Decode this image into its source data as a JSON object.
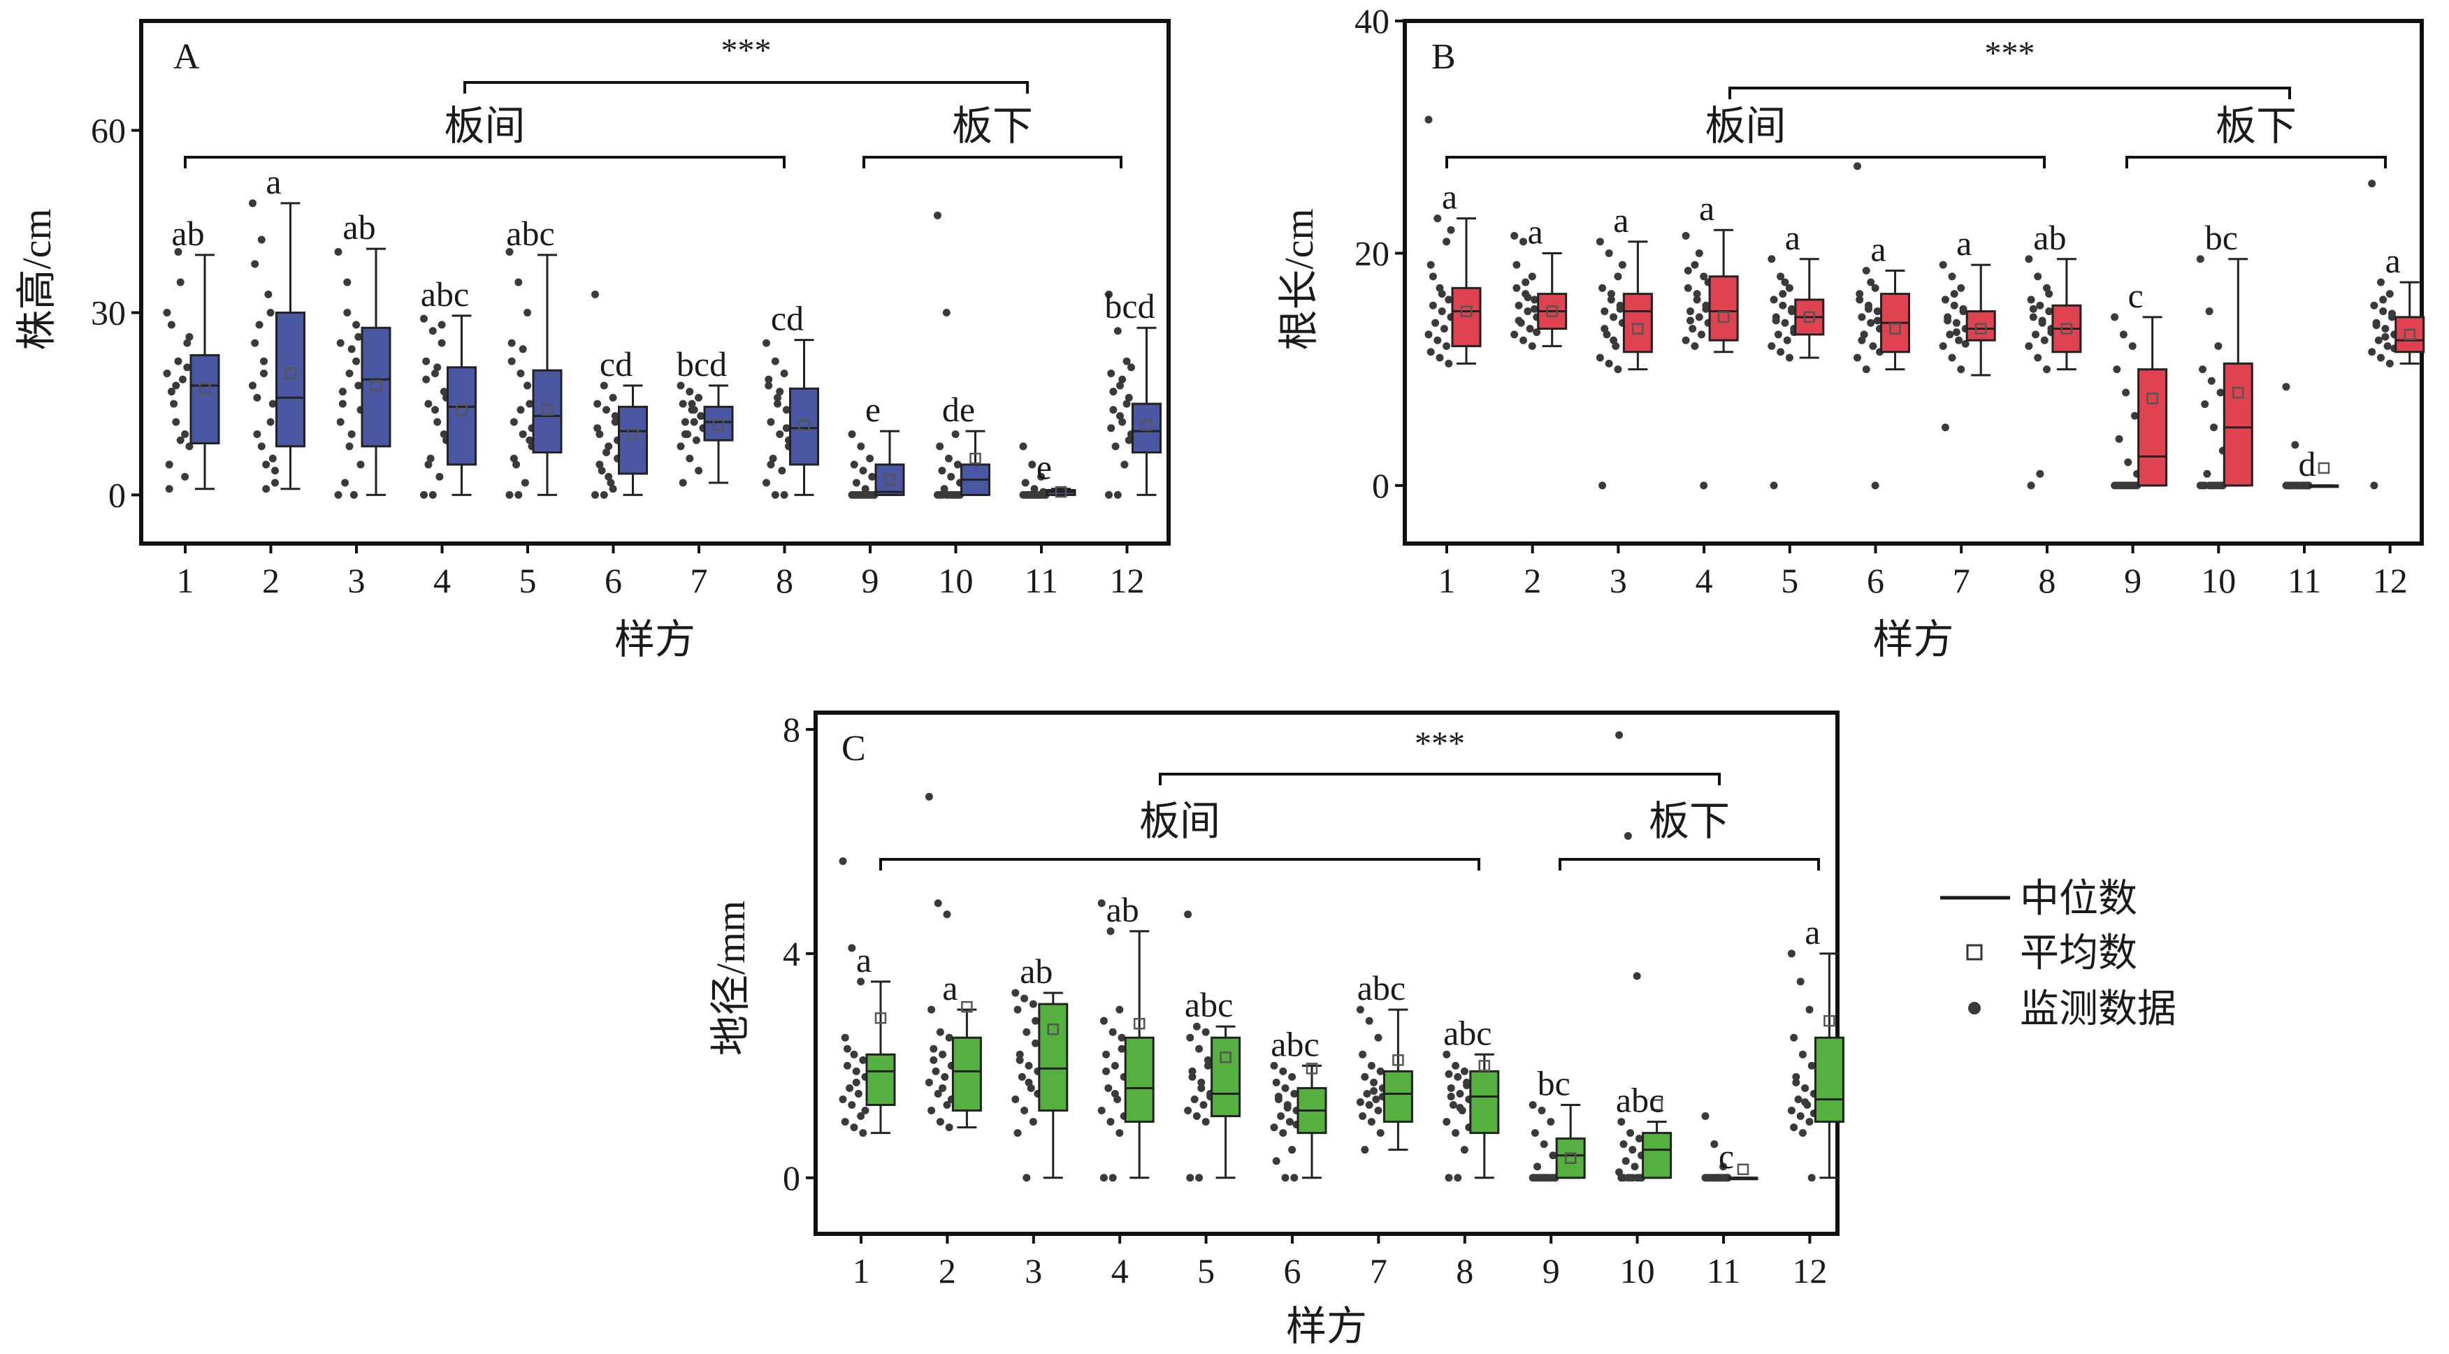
{
  "chart_data": [
    {
      "type": "box",
      "panel": "A",
      "ylabel": "株高/cm",
      "xlabel": "样方",
      "ylim": [
        -8,
        78
      ],
      "yticks": [
        0,
        30,
        60
      ],
      "categories": [
        "1",
        "2",
        "3",
        "4",
        "5",
        "6",
        "7",
        "8",
        "9",
        "10",
        "11",
        "12"
      ],
      "group_labels": [
        "板间",
        "板下"
      ],
      "significance": "***",
      "color": "#4a58a4",
      "boxes": [
        {
          "min": 1,
          "q1": 8.5,
          "median": 18,
          "q3": 23,
          "max": 39.5,
          "mean": 17.5,
          "letter": "ab"
        },
        {
          "min": 1,
          "q1": 8,
          "median": 16,
          "q3": 30,
          "max": 48,
          "mean": 20,
          "letter": "a"
        },
        {
          "min": 0,
          "q1": 8,
          "median": 19,
          "q3": 27.5,
          "max": 40.5,
          "mean": 18,
          "letter": "ab"
        },
        {
          "min": 0,
          "q1": 5,
          "median": 14.5,
          "q3": 21,
          "max": 29.5,
          "mean": 14,
          "letter": "abc"
        },
        {
          "min": 0,
          "q1": 7,
          "median": 13,
          "q3": 20.5,
          "max": 39.5,
          "mean": 14,
          "letter": "abc"
        },
        {
          "min": 0,
          "q1": 3.5,
          "median": 10.5,
          "q3": 14.5,
          "max": 18,
          "mean": 10,
          "letter": "cd"
        },
        {
          "min": 2,
          "q1": 9,
          "median": 12,
          "q3": 14.5,
          "max": 18,
          "mean": 11.5,
          "letter": "bcd"
        },
        {
          "min": 0,
          "q1": 5,
          "median": 11,
          "q3": 17.5,
          "max": 25.5,
          "mean": 11.5,
          "letter": "cd"
        },
        {
          "min": 0,
          "q1": 0,
          "median": 0.5,
          "q3": 5,
          "max": 10.5,
          "mean": 2.5,
          "letter": "e"
        },
        {
          "min": 0,
          "q1": 0,
          "median": 2.5,
          "q3": 5,
          "max": 10.5,
          "mean": 6,
          "letter": "de"
        },
        {
          "min": 0,
          "q1": 0,
          "median": 0.5,
          "q3": 0.8,
          "max": 1,
          "mean": 0.5,
          "letter": "e"
        },
        {
          "min": 0,
          "q1": 7,
          "median": 10.5,
          "q3": 15,
          "max": 27.5,
          "mean": 11.5,
          "letter": "bcd"
        }
      ],
      "points": [
        [
          20,
          18,
          10,
          5,
          22,
          25,
          28,
          35,
          8,
          15,
          19,
          30,
          12,
          3,
          1,
          40,
          21,
          17,
          9,
          26
        ],
        [
          48,
          42,
          30,
          25,
          20,
          15,
          10,
          5,
          2,
          28,
          33,
          18,
          8,
          12,
          38,
          22,
          6,
          16,
          1,
          4
        ],
        [
          40,
          35,
          28,
          25,
          20,
          18,
          15,
          10,
          5,
          2,
          0,
          0,
          30,
          22,
          12,
          8,
          26,
          17,
          24,
          14
        ],
        [
          29,
          27,
          25,
          22,
          20,
          17,
          15,
          12,
          9,
          6,
          3,
          0,
          0,
          28,
          19,
          14,
          10,
          5,
          21,
          16
        ],
        [
          40,
          35,
          30,
          25,
          20,
          15,
          12,
          10,
          8,
          5,
          2,
          0,
          0,
          18,
          22,
          14,
          9,
          6,
          24,
          11
        ],
        [
          33,
          18,
          16,
          15,
          14,
          12,
          10,
          8,
          6,
          4,
          2,
          0,
          0,
          1,
          11,
          7,
          13,
          5,
          3,
          9
        ],
        [
          18,
          17,
          16,
          15,
          14,
          13,
          12,
          12,
          11,
          10,
          9,
          8,
          6,
          4,
          2,
          15,
          13,
          10,
          14,
          11
        ],
        [
          25,
          22,
          20,
          18,
          16,
          14,
          12,
          10,
          8,
          6,
          4,
          2,
          0,
          0,
          19,
          15,
          11,
          5,
          17,
          9
        ],
        [
          10,
          8,
          6,
          5,
          4,
          3,
          2,
          1,
          0,
          0,
          0,
          0,
          0,
          0,
          0,
          0,
          0,
          0,
          0,
          0
        ],
        [
          46,
          30,
          10,
          8,
          6,
          5,
          4,
          3,
          2,
          1,
          0,
          0,
          0,
          0,
          0,
          0,
          0,
          0,
          0,
          0
        ],
        [
          8,
          5,
          3,
          2,
          1,
          0.5,
          0,
          0,
          0,
          0,
          0,
          0,
          0,
          0,
          0,
          0,
          0,
          0,
          0,
          0
        ],
        [
          33,
          27,
          22,
          20,
          18,
          16,
          14,
          12,
          10,
          8,
          5,
          0,
          0,
          15,
          11,
          13,
          9,
          17,
          19,
          21
        ]
      ]
    },
    {
      "type": "box",
      "panel": "B",
      "ylabel": "根长/cm",
      "xlabel": "样方",
      "ylim": [
        -5,
        40
      ],
      "yticks": [
        0,
        20,
        40
      ],
      "categories": [
        "1",
        "2",
        "3",
        "4",
        "5",
        "6",
        "7",
        "8",
        "9",
        "10",
        "11",
        "12"
      ],
      "group_labels": [
        "板间",
        "板下"
      ],
      "significance": "***",
      "color": "#e0424f",
      "boxes": [
        {
          "min": 10.5,
          "q1": 12,
          "median": 15,
          "q3": 17,
          "max": 23,
          "mean": 15,
          "letter": "a"
        },
        {
          "min": 12,
          "q1": 13.5,
          "median": 15,
          "q3": 16.5,
          "max": 20,
          "mean": 15,
          "letter": "a"
        },
        {
          "min": 10,
          "q1": 11.5,
          "median": 15,
          "q3": 16.5,
          "max": 21,
          "mean": 13.5,
          "letter": "a"
        },
        {
          "min": 11.5,
          "q1": 12.5,
          "median": 15,
          "q3": 18,
          "max": 22,
          "mean": 14.5,
          "letter": "a"
        },
        {
          "min": 11,
          "q1": 13,
          "median": 14.5,
          "q3": 16,
          "max": 19.5,
          "mean": 14.5,
          "letter": "a"
        },
        {
          "min": 10,
          "q1": 11.5,
          "median": 14,
          "q3": 16.5,
          "max": 18.5,
          "mean": 13.5,
          "letter": "a"
        },
        {
          "min": 9.5,
          "q1": 12.5,
          "median": 13.5,
          "q3": 15,
          "max": 19,
          "mean": 13.5,
          "letter": "a"
        },
        {
          "min": 10,
          "q1": 11.5,
          "median": 13.5,
          "q3": 15.5,
          "max": 19.5,
          "mean": 13.5,
          "letter": "ab"
        },
        {
          "min": 0,
          "q1": 0,
          "median": 2.5,
          "q3": 10,
          "max": 14.5,
          "mean": 7.5,
          "letter": "c"
        },
        {
          "min": 0,
          "q1": 0,
          "median": 5,
          "q3": 10.5,
          "max": 19.5,
          "mean": 8,
          "letter": "bc"
        },
        {
          "min": 0,
          "q1": 0,
          "median": 0,
          "q3": 0,
          "max": 0,
          "mean": 1.5,
          "letter": "d"
        },
        {
          "min": 10.5,
          "q1": 11.5,
          "median": 12.5,
          "q3": 14.5,
          "max": 17.5,
          "mean": 13,
          "letter": "a"
        }
      ],
      "points": [
        [
          31.5,
          23,
          21,
          19,
          17,
          16,
          15.5,
          15,
          14.5,
          14,
          13.5,
          13,
          12.5,
          12,
          11.5,
          11,
          10.5,
          18,
          16.5,
          22
        ],
        [
          21.5,
          21,
          18,
          17,
          16.5,
          16,
          15.5,
          15,
          14.5,
          14,
          13.5,
          13,
          12.5,
          12,
          19,
          17.5,
          15.2,
          14.2,
          16.2,
          13.2
        ],
        [
          21,
          20,
          18,
          17,
          16,
          15.5,
          15,
          14.5,
          14,
          13,
          12,
          11,
          10.5,
          10,
          0,
          16.5,
          15.2,
          13.5,
          12.5,
          19
        ],
        [
          21.5,
          19,
          18,
          17,
          16,
          15.5,
          15,
          14.5,
          14,
          13.5,
          13,
          12.5,
          12,
          0,
          18.5,
          16.5,
          15.2,
          14.2,
          20,
          17.5
        ],
        [
          19.5,
          18,
          17,
          16,
          15.5,
          15,
          14.5,
          14,
          13.5,
          13,
          12.5,
          12,
          11.5,
          11,
          0,
          16.5,
          15.2,
          14.2,
          17.5,
          13.2
        ],
        [
          27.5,
          18.5,
          17,
          16,
          15.5,
          15,
          14.5,
          14,
          13.5,
          13,
          12,
          11,
          10,
          0,
          16.5,
          15.2,
          14.2,
          12.5,
          17.5,
          11.5
        ],
        [
          19,
          18,
          17,
          16,
          15.5,
          15,
          14.5,
          14,
          13.5,
          13,
          12.5,
          12,
          11,
          10,
          5,
          16.5,
          15.2,
          14.2,
          13.2,
          12.2
        ],
        [
          19.5,
          18,
          17,
          16,
          15.5,
          15,
          14.5,
          14,
          13.5,
          13,
          12.5,
          12,
          11,
          10,
          0,
          1,
          16.5,
          15.2,
          14.2,
          13.2
        ],
        [
          14.5,
          13,
          12,
          10,
          8,
          6,
          4,
          2,
          1,
          0,
          0,
          0,
          0,
          0,
          0,
          0,
          0,
          0,
          0,
          0
        ],
        [
          19.5,
          15,
          12,
          10,
          9,
          8,
          7,
          5,
          3,
          1,
          0,
          0,
          0,
          0,
          0,
          0,
          0,
          0,
          0,
          0
        ],
        [
          8.5,
          3.5,
          0,
          0,
          0,
          0,
          0,
          0,
          0,
          0,
          0,
          0,
          0,
          0,
          0,
          0,
          0,
          0,
          0,
          0
        ],
        [
          26,
          17.5,
          16.5,
          15.5,
          15,
          14.5,
          14,
          13.5,
          13,
          12.5,
          12,
          11.5,
          11,
          10.5,
          0,
          16,
          14.8,
          13.8,
          12.8,
          11.8
        ]
      ]
    },
    {
      "type": "box",
      "panel": "C",
      "ylabel": "地径/mm",
      "xlabel": "样方",
      "ylim": [
        -1,
        8.3
      ],
      "yticks": [
        0,
        4,
        8
      ],
      "categories": [
        "1",
        "2",
        "3",
        "4",
        "5",
        "6",
        "7",
        "8",
        "9",
        "10",
        "11",
        "12"
      ],
      "group_labels": [
        "板间",
        "板下"
      ],
      "significance": "***",
      "color": "#55b040",
      "boxes": [
        {
          "min": 0.8,
          "q1": 1.3,
          "median": 1.9,
          "q3": 2.2,
          "max": 3.5,
          "mean": 2.85,
          "letter": "a"
        },
        {
          "min": 0.9,
          "q1": 1.2,
          "median": 1.9,
          "q3": 2.5,
          "max": 3.0,
          "mean": 3.05,
          "letter": "a"
        },
        {
          "min": 0,
          "q1": 1.2,
          "median": 1.95,
          "q3": 3.1,
          "max": 3.3,
          "mean": 2.65,
          "letter": "ab"
        },
        {
          "min": 0,
          "q1": 1.0,
          "median": 1.6,
          "q3": 2.5,
          "max": 4.4,
          "mean": 2.75,
          "letter": "ab"
        },
        {
          "min": 0,
          "q1": 1.1,
          "median": 1.5,
          "q3": 2.5,
          "max": 2.7,
          "mean": 2.15,
          "letter": "abc"
        },
        {
          "min": 0,
          "q1": 0.8,
          "median": 1.2,
          "q3": 1.6,
          "max": 2.0,
          "mean": 1.95,
          "letter": "abc"
        },
        {
          "min": 0.5,
          "q1": 1.0,
          "median": 1.5,
          "q3": 1.9,
          "max": 3.0,
          "mean": 2.1,
          "letter": "abc"
        },
        {
          "min": 0,
          "q1": 0.8,
          "median": 1.45,
          "q3": 1.9,
          "max": 2.2,
          "mean": 2.0,
          "letter": "abc"
        },
        {
          "min": 0,
          "q1": 0,
          "median": 0.4,
          "q3": 0.7,
          "max": 1.3,
          "mean": 0.35,
          "letter": "bc"
        },
        {
          "min": 0,
          "q1": 0,
          "median": 0.5,
          "q3": 0.8,
          "max": 1.0,
          "mean": 1.3,
          "letter": "abc"
        },
        {
          "min": 0,
          "q1": 0,
          "median": 0,
          "q3": 0,
          "max": 0,
          "mean": 0.15,
          "letter": "c"
        },
        {
          "min": 0,
          "q1": 1.0,
          "median": 1.4,
          "q3": 2.5,
          "max": 4.0,
          "mean": 2.8,
          "letter": "a"
        }
      ],
      "points": [
        [
          5.65,
          4.1,
          3.5,
          2.5,
          2.2,
          2.1,
          2.0,
          1.9,
          1.8,
          1.6,
          1.5,
          1.4,
          1.3,
          1.1,
          1.0,
          0.9,
          0.8,
          2.3,
          1.7,
          1.2
        ],
        [
          6.8,
          4.9,
          4.7,
          3.0,
          2.6,
          2.5,
          2.3,
          2.2,
          2.0,
          1.9,
          1.8,
          1.7,
          1.5,
          1.3,
          1.2,
          1.0,
          0.9,
          2.1,
          1.6,
          1.4
        ],
        [
          3.3,
          3.2,
          3.1,
          3.0,
          2.6,
          2.4,
          2.2,
          2.0,
          1.9,
          1.8,
          1.6,
          1.4,
          1.2,
          1.0,
          0.8,
          0,
          2.8,
          2.1,
          1.7,
          1.5
        ],
        [
          4.9,
          4.4,
          3.0,
          2.8,
          2.6,
          2.5,
          2.2,
          2.0,
          1.8,
          1.6,
          1.4,
          1.2,
          1.0,
          0.8,
          0,
          0,
          2.3,
          1.9,
          1.5,
          1.1
        ],
        [
          4.7,
          2.7,
          2.6,
          2.5,
          2.3,
          2.1,
          1.9,
          1.7,
          1.5,
          1.4,
          1.3,
          1.2,
          1.1,
          1.0,
          0,
          0,
          2.0,
          1.8,
          1.6,
          1.45
        ],
        [
          2.0,
          1.9,
          1.8,
          1.7,
          1.6,
          1.5,
          1.4,
          1.3,
          1.2,
          1.1,
          1.0,
          0.9,
          0.8,
          0.5,
          0.3,
          0,
          0,
          1.45,
          1.25,
          0.95
        ],
        [
          3.0,
          2.8,
          2.5,
          2.2,
          2.0,
          1.9,
          1.8,
          1.7,
          1.6,
          1.5,
          1.4,
          1.35,
          1.3,
          1.2,
          1.1,
          1.0,
          0.8,
          0.5,
          1.55,
          1.45
        ],
        [
          2.2,
          2.0,
          1.9,
          1.85,
          1.8,
          1.7,
          1.6,
          1.5,
          1.4,
          1.3,
          1.2,
          1.0,
          0.8,
          0.5,
          0,
          0,
          1.65,
          1.45,
          1.25,
          0.9
        ],
        [
          1.3,
          1.2,
          1.0,
          0.8,
          0.6,
          0.4,
          0.2,
          0,
          0,
          0,
          0,
          0,
          0,
          0,
          0,
          0,
          0,
          0,
          0,
          0
        ],
        [
          7.9,
          6.1,
          3.6,
          1.0,
          0.8,
          0.7,
          0.6,
          0.5,
          0.4,
          0.3,
          0.2,
          0.1,
          0,
          0,
          0,
          0,
          0,
          0,
          0,
          0
        ],
        [
          1.1,
          0.6,
          0.2,
          0,
          0,
          0,
          0,
          0,
          0,
          0,
          0,
          0,
          0,
          0,
          0,
          0,
          0,
          0,
          0,
          0
        ],
        [
          4.0,
          3.5,
          3.0,
          2.5,
          2.2,
          2.0,
          1.8,
          1.6,
          1.5,
          1.4,
          1.3,
          1.2,
          1.1,
          1.0,
          0.9,
          0.8,
          0,
          1.7,
          1.35,
          1.15
        ]
      ]
    }
  ],
  "legend": {
    "median_label": "中位数",
    "mean_label": "平均数",
    "data_label": "监测数据"
  }
}
